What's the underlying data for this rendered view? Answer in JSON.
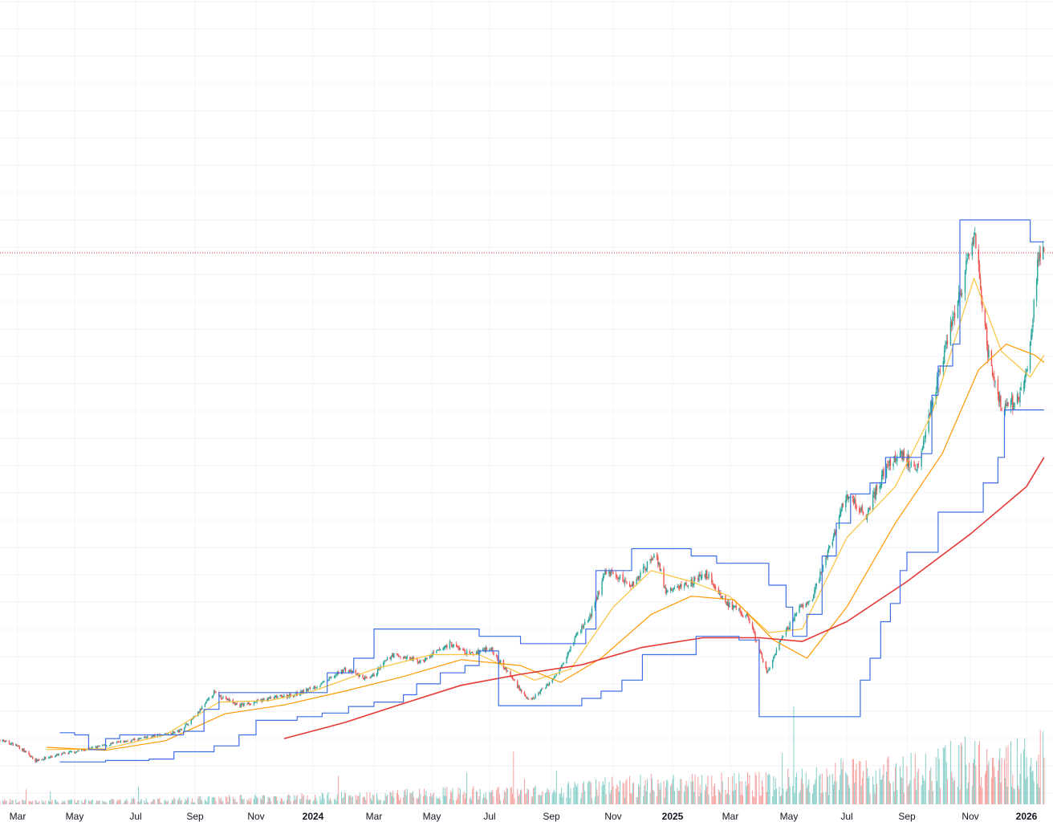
{
  "chart_data": {
    "type": "candlestick",
    "title": "",
    "xlabel": "",
    "ylabel": "",
    "x_ticks": [
      {
        "label": "Mar",
        "date": "2023-03-01",
        "bold": false
      },
      {
        "label": "May",
        "date": "2023-05-01",
        "bold": false
      },
      {
        "label": "Jul",
        "date": "2023-07-01",
        "bold": false
      },
      {
        "label": "Sep",
        "date": "2023-09-01",
        "bold": false
      },
      {
        "label": "Nov",
        "date": "2023-11-01",
        "bold": false
      },
      {
        "label": "2024",
        "date": "2024-01-01",
        "bold": true
      },
      {
        "label": "Mar",
        "date": "2024-03-01",
        "bold": false
      },
      {
        "label": "May",
        "date": "2024-05-01",
        "bold": false
      },
      {
        "label": "Jul",
        "date": "2024-07-01",
        "bold": false
      },
      {
        "label": "Sep",
        "date": "2024-09-01",
        "bold": false
      },
      {
        "label": "Nov",
        "date": "2024-11-01",
        "bold": false
      },
      {
        "label": "2025",
        "date": "2025-01-01",
        "bold": true
      },
      {
        "label": "Mar",
        "date": "2025-03-01",
        "bold": false
      },
      {
        "label": "May",
        "date": "2025-05-01",
        "bold": false
      },
      {
        "label": "Jul",
        "date": "2025-07-01",
        "bold": false
      },
      {
        "label": "Sep",
        "date": "2025-09-01",
        "bold": false
      },
      {
        "label": "Nov",
        "date": "2025-11-01",
        "bold": false
      },
      {
        "label": "2026",
        "date": "2026-01-01",
        "bold": true
      }
    ],
    "price_range": [
      0,
      100
    ],
    "last_price": 75.5,
    "price_series": [
      {
        "date": "2023-02-01",
        "value": 9.2
      },
      {
        "date": "2023-03-01",
        "value": 8.0
      },
      {
        "date": "2023-03-20",
        "value": 6.0
      },
      {
        "date": "2023-04-15",
        "value": 6.8
      },
      {
        "date": "2023-05-15",
        "value": 7.6
      },
      {
        "date": "2023-06-15",
        "value": 8.5
      },
      {
        "date": "2023-07-15",
        "value": 9.2
      },
      {
        "date": "2023-08-15",
        "value": 10.0
      },
      {
        "date": "2023-09-01",
        "value": 12.0
      },
      {
        "date": "2023-09-20",
        "value": 15.3
      },
      {
        "date": "2023-10-15",
        "value": 13.5
      },
      {
        "date": "2023-11-15",
        "value": 14.5
      },
      {
        "date": "2023-12-15",
        "value": 15.1
      },
      {
        "date": "2024-01-10",
        "value": 16.5
      },
      {
        "date": "2024-02-01",
        "value": 18.5
      },
      {
        "date": "2024-02-25",
        "value": 17.0
      },
      {
        "date": "2024-03-20",
        "value": 20.5
      },
      {
        "date": "2024-04-20",
        "value": 19.5
      },
      {
        "date": "2024-05-20",
        "value": 22.0
      },
      {
        "date": "2024-06-10",
        "value": 20.5
      },
      {
        "date": "2024-07-01",
        "value": 21.5
      },
      {
        "date": "2024-07-25",
        "value": 17.0
      },
      {
        "date": "2024-08-10",
        "value": 14.0
      },
      {
        "date": "2024-09-05",
        "value": 17.5
      },
      {
        "date": "2024-09-25",
        "value": 23.0
      },
      {
        "date": "2024-10-10",
        "value": 26.0
      },
      {
        "date": "2024-10-25",
        "value": 32.0
      },
      {
        "date": "2024-11-20",
        "value": 30.0
      },
      {
        "date": "2024-12-15",
        "value": 34.5
      },
      {
        "date": "2024-12-25",
        "value": 29.0
      },
      {
        "date": "2025-01-20",
        "value": 30.5
      },
      {
        "date": "2025-02-05",
        "value": 31.5
      },
      {
        "date": "2025-02-25",
        "value": 27.5
      },
      {
        "date": "2025-03-20",
        "value": 25.5
      },
      {
        "date": "2025-04-08",
        "value": 18.0
      },
      {
        "date": "2025-04-25",
        "value": 23.0
      },
      {
        "date": "2025-05-10",
        "value": 26.5
      },
      {
        "date": "2025-05-25",
        "value": 28.0
      },
      {
        "date": "2025-06-15",
        "value": 36.0
      },
      {
        "date": "2025-07-01",
        "value": 42.5
      },
      {
        "date": "2025-07-20",
        "value": 39.5
      },
      {
        "date": "2025-08-10",
        "value": 46.0
      },
      {
        "date": "2025-08-25",
        "value": 48.0
      },
      {
        "date": "2025-09-10",
        "value": 46.0
      },
      {
        "date": "2025-09-25",
        "value": 55.0
      },
      {
        "date": "2025-10-10",
        "value": 64.0
      },
      {
        "date": "2025-10-25",
        "value": 71.5
      },
      {
        "date": "2025-11-05",
        "value": 78.0
      },
      {
        "date": "2025-11-20",
        "value": 62.0
      },
      {
        "date": "2025-12-05",
        "value": 54.0
      },
      {
        "date": "2025-12-25",
        "value": 55.5
      },
      {
        "date": "2026-01-05",
        "value": 62.5
      },
      {
        "date": "2026-01-15",
        "value": 76.0
      },
      {
        "date": "2026-01-20",
        "value": 75.5
      }
    ],
    "series": [
      {
        "key": "ma_short",
        "color": "#f9c23c",
        "values": [
          {
            "date": "2023-04-01",
            "value": 7.5
          },
          {
            "date": "2023-06-01",
            "value": 7.6
          },
          {
            "date": "2023-08-01",
            "value": 9.5
          },
          {
            "date": "2023-09-25",
            "value": 14.0
          },
          {
            "date": "2023-11-15",
            "value": 14.2
          },
          {
            "date": "2024-01-01",
            "value": 15.5
          },
          {
            "date": "2024-03-01",
            "value": 18.5
          },
          {
            "date": "2024-05-01",
            "value": 20.5
          },
          {
            "date": "2024-06-20",
            "value": 20.5
          },
          {
            "date": "2024-08-15",
            "value": 17.0
          },
          {
            "date": "2024-09-20",
            "value": 18.5
          },
          {
            "date": "2024-11-01",
            "value": 27.0
          },
          {
            "date": "2024-12-10",
            "value": 32.0
          },
          {
            "date": "2025-01-20",
            "value": 30.5
          },
          {
            "date": "2025-02-28",
            "value": 28.5
          },
          {
            "date": "2025-04-10",
            "value": 23.5
          },
          {
            "date": "2025-05-15",
            "value": 24.0
          },
          {
            "date": "2025-07-01",
            "value": 36.5
          },
          {
            "date": "2025-08-20",
            "value": 43.5
          },
          {
            "date": "2025-09-25",
            "value": 53.5
          },
          {
            "date": "2025-11-05",
            "value": 72.0
          },
          {
            "date": "2025-12-05",
            "value": 62.0
          },
          {
            "date": "2026-01-05",
            "value": 58.5
          },
          {
            "date": "2026-01-20",
            "value": 61.5
          }
        ]
      },
      {
        "key": "ma_mid",
        "color": "#ff9800",
        "values": [
          {
            "date": "2023-04-01",
            "value": 7.8
          },
          {
            "date": "2023-06-01",
            "value": 7.4
          },
          {
            "date": "2023-08-01",
            "value": 8.7
          },
          {
            "date": "2023-10-01",
            "value": 12.4
          },
          {
            "date": "2023-12-01",
            "value": 13.6
          },
          {
            "date": "2024-02-01",
            "value": 15.5
          },
          {
            "date": "2024-04-01",
            "value": 17.5
          },
          {
            "date": "2024-06-01",
            "value": 19.8
          },
          {
            "date": "2024-08-01",
            "value": 19.0
          },
          {
            "date": "2024-09-10",
            "value": 16.7
          },
          {
            "date": "2024-10-20",
            "value": 20.0
          },
          {
            "date": "2024-12-10",
            "value": 26.0
          },
          {
            "date": "2025-01-20",
            "value": 28.5
          },
          {
            "date": "2025-03-05",
            "value": 28.0
          },
          {
            "date": "2025-04-15",
            "value": 22.5
          },
          {
            "date": "2025-05-20",
            "value": 20.0
          },
          {
            "date": "2025-07-01",
            "value": 27.0
          },
          {
            "date": "2025-08-20",
            "value": 38.5
          },
          {
            "date": "2025-10-05",
            "value": 48.0
          },
          {
            "date": "2025-11-10",
            "value": 59.5
          },
          {
            "date": "2025-12-10",
            "value": 63.0
          },
          {
            "date": "2026-01-10",
            "value": 61.5
          },
          {
            "date": "2026-01-20",
            "value": 60.5
          }
        ]
      },
      {
        "key": "ma_long",
        "color": "#e53935",
        "values": [
          {
            "date": "2023-12-01",
            "value": 9.0
          },
          {
            "date": "2024-02-01",
            "value": 11.2
          },
          {
            "date": "2024-04-01",
            "value": 13.8
          },
          {
            "date": "2024-06-01",
            "value": 16.3
          },
          {
            "date": "2024-08-01",
            "value": 17.8
          },
          {
            "date": "2024-10-01",
            "value": 19.1
          },
          {
            "date": "2024-12-01",
            "value": 21.5
          },
          {
            "date": "2025-02-01",
            "value": 22.8
          },
          {
            "date": "2025-04-01",
            "value": 22.8
          },
          {
            "date": "2025-05-15",
            "value": 22.3
          },
          {
            "date": "2025-07-01",
            "value": 25.0
          },
          {
            "date": "2025-09-01",
            "value": 30.5
          },
          {
            "date": "2025-11-01",
            "value": 37.0
          },
          {
            "date": "2026-01-01",
            "value": 43.5
          },
          {
            "date": "2026-01-20",
            "value": 47.5
          }
        ]
      },
      {
        "key": "channel_upper",
        "color": "#3d6ee6",
        "values": [
          {
            "date": "2023-04-15",
            "value": 9.8
          },
          {
            "date": "2023-05-01",
            "value": 9.5
          },
          {
            "date": "2023-05-15",
            "value": 7.5
          },
          {
            "date": "2023-06-01",
            "value": 9.0
          },
          {
            "date": "2023-06-15",
            "value": 9.5
          },
          {
            "date": "2023-07-20",
            "value": 9.5
          },
          {
            "date": "2023-08-20",
            "value": 10.0
          },
          {
            "date": "2023-09-10",
            "value": 13.0
          },
          {
            "date": "2023-09-25",
            "value": 15.3
          },
          {
            "date": "2024-01-05",
            "value": 15.3
          },
          {
            "date": "2024-01-15",
            "value": 18.0
          },
          {
            "date": "2024-02-10",
            "value": 20.0
          },
          {
            "date": "2024-03-01",
            "value": 24.0
          },
          {
            "date": "2024-06-10",
            "value": 24.0
          },
          {
            "date": "2024-06-20",
            "value": 23.0
          },
          {
            "date": "2024-07-15",
            "value": 23.0
          },
          {
            "date": "2024-08-01",
            "value": 22.0
          },
          {
            "date": "2024-10-01",
            "value": 22.0
          },
          {
            "date": "2024-10-05",
            "value": 24.0
          },
          {
            "date": "2024-10-15",
            "value": 32.0
          },
          {
            "date": "2024-11-10",
            "value": 32.0
          },
          {
            "date": "2024-11-20",
            "value": 35.0
          },
          {
            "date": "2024-12-20",
            "value": 35.0
          },
          {
            "date": "2025-01-20",
            "value": 34.0
          },
          {
            "date": "2025-02-05",
            "value": 34.0
          },
          {
            "date": "2025-02-15",
            "value": 33.0
          },
          {
            "date": "2025-04-01",
            "value": 33.0
          },
          {
            "date": "2025-04-10",
            "value": 30.0
          },
          {
            "date": "2025-04-28",
            "value": 27.0
          },
          {
            "date": "2025-05-05",
            "value": 23.0
          },
          {
            "date": "2025-05-20",
            "value": 26.0
          },
          {
            "date": "2025-06-05",
            "value": 34.0
          },
          {
            "date": "2025-06-20",
            "value": 38.5
          },
          {
            "date": "2025-07-05",
            "value": 42.5
          },
          {
            "date": "2025-07-25",
            "value": 44.0
          },
          {
            "date": "2025-08-10",
            "value": 47.5
          },
          {
            "date": "2025-09-15",
            "value": 48.0
          },
          {
            "date": "2025-09-25",
            "value": 56.0
          },
          {
            "date": "2025-10-01",
            "value": 60.0
          },
          {
            "date": "2025-10-15",
            "value": 63.0
          },
          {
            "date": "2025-10-22",
            "value": 80.0
          },
          {
            "date": "2025-12-25",
            "value": 80.0
          },
          {
            "date": "2026-01-05",
            "value": 77.0
          },
          {
            "date": "2026-01-20",
            "value": 77.0
          }
        ]
      },
      {
        "key": "channel_lower",
        "color": "#3d6ee6",
        "values": [
          {
            "date": "2023-04-15",
            "value": 5.8
          },
          {
            "date": "2023-05-15",
            "value": 5.8
          },
          {
            "date": "2023-06-01",
            "value": 6.0
          },
          {
            "date": "2023-07-15",
            "value": 6.2
          },
          {
            "date": "2023-08-10",
            "value": 7.2
          },
          {
            "date": "2023-09-20",
            "value": 8.0
          },
          {
            "date": "2023-10-15",
            "value": 9.5
          },
          {
            "date": "2023-11-01",
            "value": 11.5
          },
          {
            "date": "2023-12-15",
            "value": 12.0
          },
          {
            "date": "2024-01-10",
            "value": 12.5
          },
          {
            "date": "2024-02-05",
            "value": 13.4
          },
          {
            "date": "2024-03-01",
            "value": 14.0
          },
          {
            "date": "2024-04-01",
            "value": 15.0
          },
          {
            "date": "2024-04-15",
            "value": 16.5
          },
          {
            "date": "2024-05-10",
            "value": 18.0
          },
          {
            "date": "2024-06-05",
            "value": 19.0
          },
          {
            "date": "2024-06-20",
            "value": 21.0
          },
          {
            "date": "2024-07-10",
            "value": 13.5
          },
          {
            "date": "2024-08-05",
            "value": 13.5
          },
          {
            "date": "2024-09-20",
            "value": 13.5
          },
          {
            "date": "2024-10-01",
            "value": 14.5
          },
          {
            "date": "2024-10-20",
            "value": 15.5
          },
          {
            "date": "2024-11-10",
            "value": 17.0
          },
          {
            "date": "2024-12-01",
            "value": 20.5
          },
          {
            "date": "2025-01-25",
            "value": 23.0
          },
          {
            "date": "2025-02-20",
            "value": 23.0
          },
          {
            "date": "2025-03-10",
            "value": 22.5
          },
          {
            "date": "2025-03-31",
            "value": 12.0
          },
          {
            "date": "2025-07-05",
            "value": 12.0
          },
          {
            "date": "2025-07-15",
            "value": 17.0
          },
          {
            "date": "2025-07-25",
            "value": 20.0
          },
          {
            "date": "2025-08-05",
            "value": 25.0
          },
          {
            "date": "2025-08-15",
            "value": 27.5
          },
          {
            "date": "2025-08-25",
            "value": 32.0
          },
          {
            "date": "2025-09-01",
            "value": 34.5
          },
          {
            "date": "2025-09-20",
            "value": 34.5
          },
          {
            "date": "2025-10-01",
            "value": 40.0
          },
          {
            "date": "2025-11-05",
            "value": 40.0
          },
          {
            "date": "2025-11-15",
            "value": 44.0
          },
          {
            "date": "2025-12-01",
            "value": 47.5
          },
          {
            "date": "2025-12-08",
            "value": 54.0
          },
          {
            "date": "2026-01-20",
            "value": 54.0
          }
        ]
      }
    ],
    "volume_colors": {
      "up": "#26a69a",
      "down": "#ef5350"
    },
    "candle_colors": {
      "up": "#26a69a",
      "down": "#ef5350"
    },
    "grid": true
  }
}
